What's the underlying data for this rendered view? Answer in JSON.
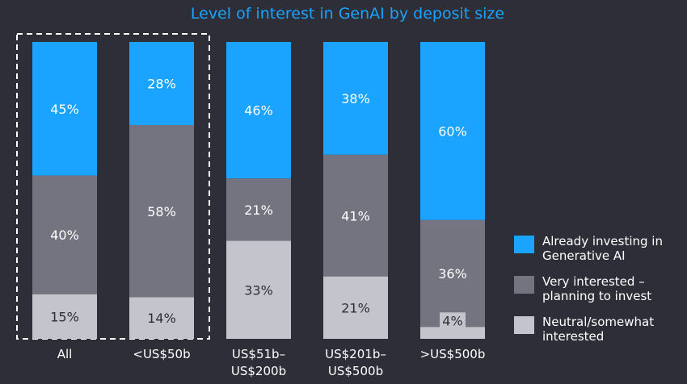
{
  "chart_data": {
    "type": "bar",
    "stacked": true,
    "percent_stacked": true,
    "title": "Level of interest in GenAI by deposit size",
    "categories": [
      "All",
      "<US$50b",
      "US$51b–\nUS$200b",
      "US$201b–\nUS$500b",
      ">US$500b"
    ],
    "series": [
      {
        "name": "Already investing in Generative AI",
        "values": [
          45,
          28,
          46,
          38,
          60
        ],
        "color": "#1aa3ff",
        "label_color": "#ffffff"
      },
      {
        "name": "Very interested – planning to invest",
        "values": [
          40,
          58,
          21,
          41,
          36
        ],
        "color": "#747480",
        "label_color": "#ffffff"
      },
      {
        "name": "Neutral/somewhat interested",
        "values": [
          15,
          14,
          33,
          21,
          4
        ],
        "color": "#c4c4cd",
        "label_color": "#2e2e38"
      }
    ],
    "value_suffix": "%",
    "highlight": {
      "categories": [
        0,
        1
      ],
      "style": "dashed-outline",
      "color": "#ffffff"
    },
    "legend": {
      "position": "right"
    },
    "grid": false,
    "background": "#2e2e38",
    "title_color": "#1aa3ff"
  }
}
